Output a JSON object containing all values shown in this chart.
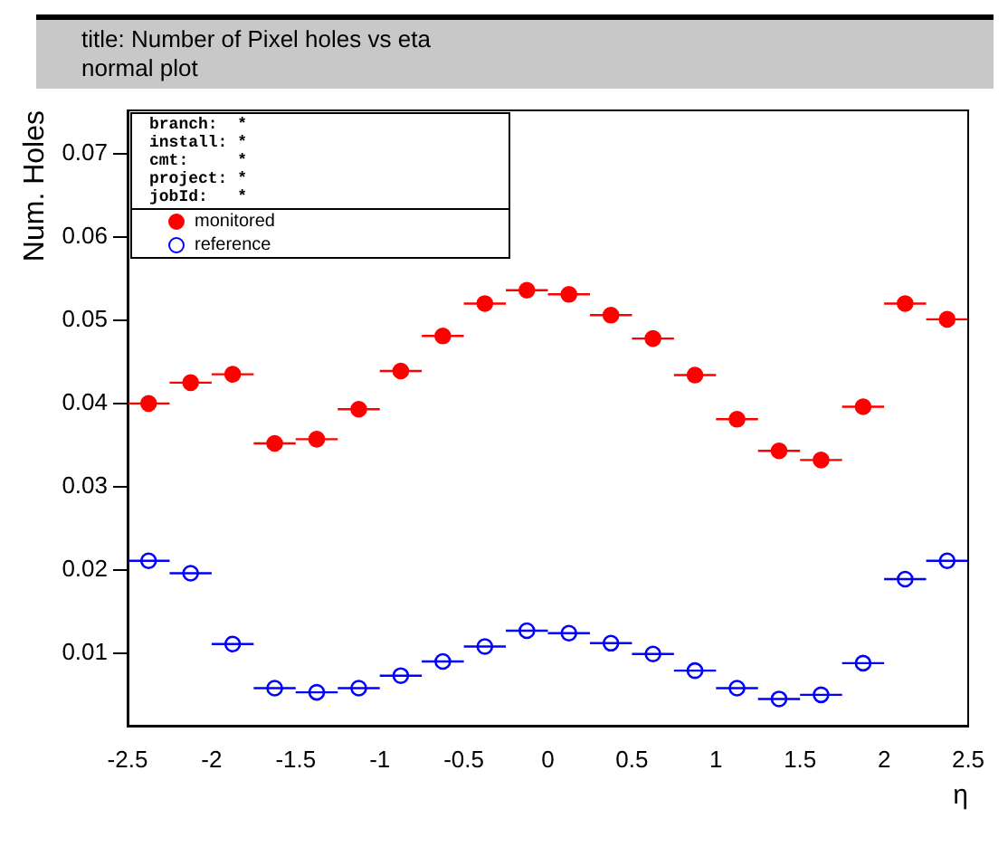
{
  "chart_data": {
    "type": "scatter",
    "title": "title: Number of Pixel holes  vs eta",
    "subtitle": "normal plot",
    "xlabel": "η",
    "ylabel": "Num. Holes",
    "x": [
      -2.375,
      -2.125,
      -1.875,
      -1.625,
      -1.375,
      -1.125,
      -0.875,
      -0.625,
      -0.375,
      -0.125,
      0.125,
      0.375,
      0.625,
      0.875,
      1.125,
      1.375,
      1.625,
      1.875,
      2.125,
      2.375
    ],
    "series": [
      {
        "name": "monitored",
        "color": "#ff0000",
        "marker": "circle",
        "values": [
          0.04,
          0.0425,
          0.0435,
          0.0352,
          0.0357,
          0.0393,
          0.0439,
          0.0481,
          0.052,
          0.0536,
          0.0531,
          0.0506,
          0.0478,
          0.0434,
          0.0381,
          0.0343,
          0.0332,
          0.0396,
          0.052,
          0.0501
        ],
        "xerrors": [
          0.125,
          0.125,
          0.125,
          0.125,
          0.125,
          0.125,
          0.125,
          0.125,
          0.125,
          0.125,
          0.125,
          0.125,
          0.125,
          0.125,
          0.125,
          0.125,
          0.125,
          0.125,
          0.125,
          0.125
        ]
      },
      {
        "name": "reference",
        "color": "#0000ff",
        "marker": "circle",
        "values": [
          0.0211,
          0.0196,
          0.0111,
          0.0058,
          0.0053,
          0.0058,
          0.0073,
          0.009,
          0.0108,
          0.0127,
          0.0124,
          0.0112,
          0.0099,
          0.0079,
          0.0058,
          0.0045,
          0.005,
          0.0088,
          0.0189,
          0.0211
        ],
        "xerrors": [
          0.125,
          0.125,
          0.125,
          0.125,
          0.125,
          0.125,
          0.125,
          0.125,
          0.125,
          0.125,
          0.125,
          0.125,
          0.125,
          0.125,
          0.125,
          0.125,
          0.125,
          0.125,
          0.125,
          0.125
        ]
      }
    ],
    "xlim": [
      -2.5,
      2.5
    ],
    "xticks": [
      -2.5,
      -2,
      -1.5,
      -1,
      -0.5,
      0,
      0.5,
      1,
      1.5,
      2,
      2.5
    ],
    "ylim": [
      0.0012,
      0.0752
    ],
    "yticks": [
      0.01,
      0.02,
      0.03,
      0.04,
      0.05,
      0.06,
      0.07
    ],
    "grid": false,
    "legend": "top left",
    "annotations": [
      "branch:  *",
      "install: *",
      "cmt:     *",
      "project: *",
      "jobId:   *"
    ]
  }
}
